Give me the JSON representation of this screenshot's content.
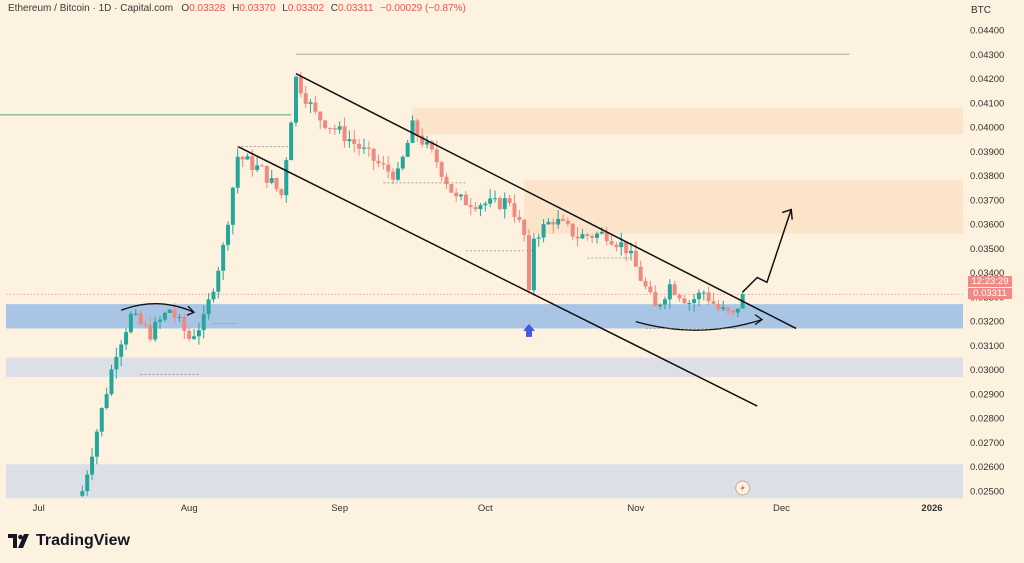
{
  "header": {
    "title": "Ethereum / Bitcoin · 1D · Capital.com",
    "open_label": "O",
    "open": "0.03328",
    "high_label": "H",
    "high": "0.03370",
    "low_label": "L",
    "low": "0.03302",
    "close_label": "C",
    "close": "0.03311",
    "change": "−0.00029 (−0.87%)"
  },
  "currency": "BTC",
  "brand": "TradingView",
  "countdown": "12:23:29",
  "last_price": "0.03311",
  "colors": {
    "background": "#fdf1e0",
    "up": "#26a69a",
    "down": "#ef8a80",
    "blue_zone": "#9fc0e6",
    "light_zone": "#d7dce8",
    "supply_zone": "#fce2c8",
    "arrow": "#4a57e0"
  },
  "chart_data": {
    "type": "candlestick",
    "title": "Ethereum / Bitcoin · 1D · Capital.com",
    "y_axis": {
      "unit": "BTC",
      "ylim": [
        0.0246,
        0.0448
      ],
      "ticks": [
        "0.04400",
        "0.04300",
        "0.04200",
        "0.04100",
        "0.04000",
        "0.03900",
        "0.03800",
        "0.03700",
        "0.03600",
        "0.03500",
        "0.03400",
        "0.03300",
        "0.03200",
        "0.03100",
        "0.03000",
        "0.02900",
        "0.02800",
        "0.02700",
        "0.02600",
        "0.02500"
      ]
    },
    "x_axis": {
      "date_range": [
        "2025-06-01",
        "2026-01-01"
      ],
      "month_labels": [
        {
          "label": "Jul",
          "date": "2025-07-01"
        },
        {
          "label": "Aug",
          "date": "2025-08-01"
        },
        {
          "label": "Sep",
          "date": "2025-09-01"
        },
        {
          "label": "Oct",
          "date": "2025-10-01"
        },
        {
          "label": "Nov",
          "date": "2025-11-01"
        },
        {
          "label": "Dec",
          "date": "2025-12-01"
        },
        {
          "label": "2026",
          "date": "2026-01-01"
        }
      ]
    },
    "key_path": [
      {
        "date": "2025-07-10",
        "close": 0.025
      },
      {
        "date": "2025-07-13",
        "close": 0.0275
      },
      {
        "date": "2025-07-17",
        "close": 0.0308
      },
      {
        "date": "2025-07-20",
        "close": 0.0322
      },
      {
        "date": "2025-07-24",
        "close": 0.0315
      },
      {
        "date": "2025-07-28",
        "close": 0.0325
      },
      {
        "date": "2025-08-01",
        "close": 0.0313
      },
      {
        "date": "2025-08-04",
        "close": 0.032
      },
      {
        "date": "2025-08-08",
        "close": 0.035
      },
      {
        "date": "2025-08-11",
        "close": 0.0388
      },
      {
        "date": "2025-08-16",
        "close": 0.0382
      },
      {
        "date": "2025-08-20",
        "close": 0.0372
      },
      {
        "date": "2025-08-23",
        "close": 0.042
      },
      {
        "date": "2025-08-27",
        "close": 0.0405
      },
      {
        "date": "2025-09-03",
        "close": 0.0395
      },
      {
        "date": "2025-09-10",
        "close": 0.0383
      },
      {
        "date": "2025-09-13",
        "close": 0.038
      },
      {
        "date": "2025-09-16",
        "close": 0.04
      },
      {
        "date": "2025-09-21",
        "close": 0.0386
      },
      {
        "date": "2025-09-25",
        "close": 0.037
      },
      {
        "date": "2025-10-03",
        "close": 0.0368
      },
      {
        "date": "2025-10-06",
        "close": 0.037
      },
      {
        "date": "2025-10-09",
        "close": 0.0355
      },
      {
        "date": "2025-10-10",
        "close": 0.033
      },
      {
        "date": "2025-10-11",
        "close": 0.0355
      },
      {
        "date": "2025-10-15",
        "close": 0.0362
      },
      {
        "date": "2025-10-20",
        "close": 0.0355
      },
      {
        "date": "2025-10-26",
        "close": 0.0356
      },
      {
        "date": "2025-10-30",
        "close": 0.035
      },
      {
        "date": "2025-11-01",
        "close": 0.0342
      },
      {
        "date": "2025-11-05",
        "close": 0.0325
      },
      {
        "date": "2025-11-08",
        "close": 0.0335
      },
      {
        "date": "2025-11-12",
        "close": 0.0328
      },
      {
        "date": "2025-11-15",
        "close": 0.0332
      },
      {
        "date": "2025-11-18",
        "close": 0.0325
      },
      {
        "date": "2025-11-21",
        "close": 0.0322
      },
      {
        "date": "2025-11-23",
        "close": 0.0331
      }
    ],
    "zones": [
      {
        "name": "blue-support-zone",
        "from": 0.0317,
        "to": 0.0327
      },
      {
        "name": "lower-support-zone",
        "from": 0.0297,
        "to": 0.0305
      },
      {
        "name": "bottom-support-zone",
        "from": 0.0247,
        "to": 0.0261
      },
      {
        "name": "upper-supply-zone",
        "from": 0.0397,
        "to": 0.0408,
        "start": "2025-09-16"
      },
      {
        "name": "mid-supply-zone",
        "from": 0.0356,
        "to": 0.0378,
        "start": "2025-10-09"
      }
    ],
    "levels": [
      {
        "name": "high-level-line",
        "value": 0.043,
        "from": "2025-08-23",
        "to": "2025-12-15"
      },
      {
        "name": "left-level-line",
        "value": 0.0405,
        "from": "2025-06-01",
        "to": "2025-08-22"
      }
    ],
    "channel": {
      "upper": [
        {
          "date": "2025-08-23",
          "value": 0.0422
        },
        {
          "date": "2025-12-04",
          "value": 0.0317
        }
      ],
      "lower": [
        {
          "date": "2025-08-11",
          "value": 0.0392
        },
        {
          "date": "2025-11-26",
          "value": 0.0285
        }
      ]
    },
    "projection": [
      {
        "date": "2025-11-23",
        "value": 0.0332
      },
      {
        "date": "2025-11-26",
        "value": 0.0338
      },
      {
        "date": "2025-11-28",
        "value": 0.0336
      },
      {
        "date": "2025-12-03",
        "value": 0.0366
      }
    ]
  }
}
